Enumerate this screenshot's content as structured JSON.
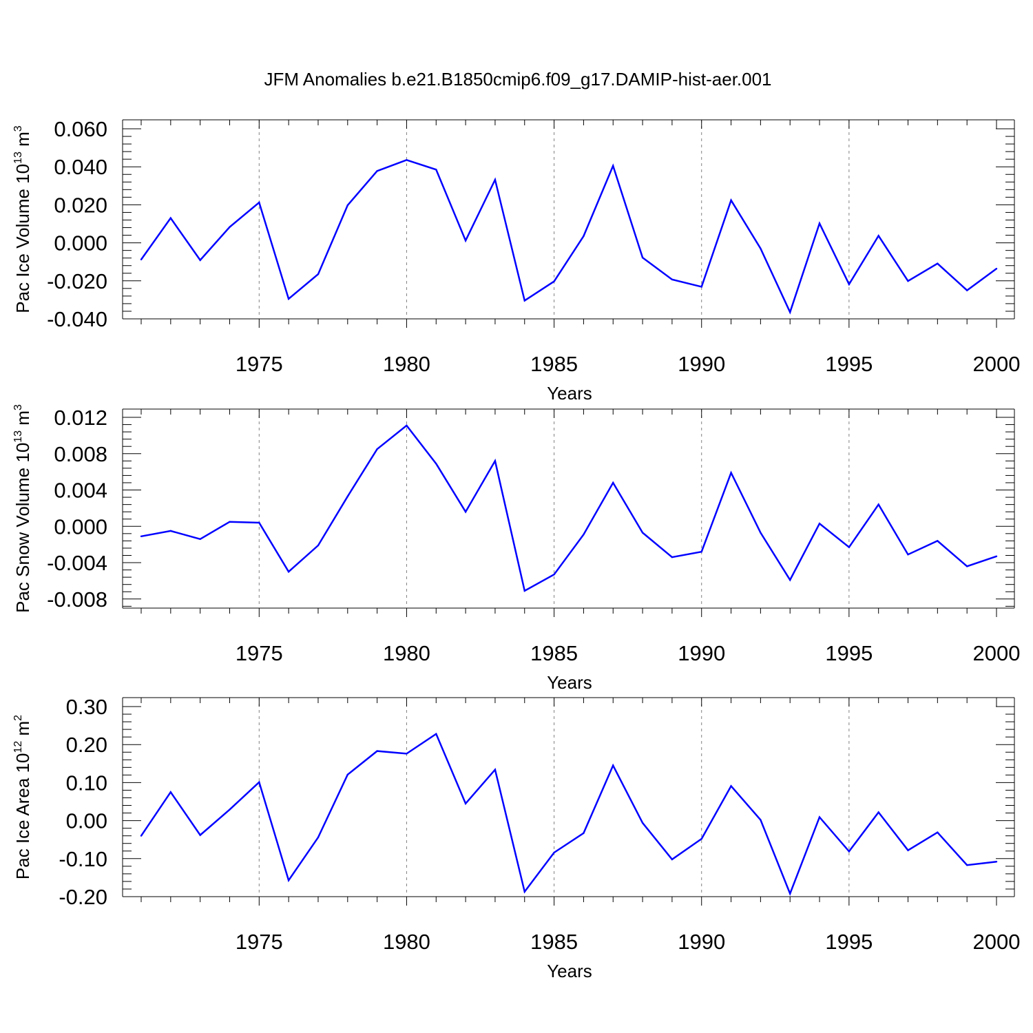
{
  "title": "JFM Anomalies b.e21.B1850cmip6.f09_g17.DAMIP-hist-aer.001",
  "colors": {
    "line": "#0000ff",
    "axis": "#000000",
    "grid": "#808080"
  },
  "chart_data": [
    {
      "type": "line",
      "ylabel_main": "Pac Ice Volume 10",
      "ylabel_sup1": "13",
      "ylabel_unit": " m",
      "ylabel_sup2": "3",
      "xlabel": "Years",
      "xlim": [
        1971,
        2000
      ],
      "ylim": [
        -0.04,
        0.06
      ],
      "y_ticks": [
        -0.04,
        -0.02,
        0.0,
        0.02,
        0.04,
        0.06
      ],
      "y_tick_labels": [
        "-0.040",
        "-0.020",
        "0.000",
        "0.020",
        "0.040",
        "0.060"
      ],
      "x_ticks": [
        1975,
        1980,
        1985,
        1990,
        1995,
        2000
      ],
      "x_tick_labels": [
        "1975",
        "1980",
        "1985",
        "1990",
        "1995",
        "2000"
      ],
      "x": [
        1971,
        1972,
        1973,
        1974,
        1975,
        1976,
        1977,
        1978,
        1979,
        1980,
        1981,
        1982,
        1983,
        1984,
        1985,
        1986,
        1987,
        1988,
        1989,
        1990,
        1991,
        1992,
        1993,
        1994,
        1995,
        1996,
        1997,
        1998,
        1999,
        2000
      ],
      "values": [
        -0.0088,
        0.013,
        -0.0091,
        0.0083,
        0.0212,
        -0.0295,
        -0.0165,
        0.0198,
        0.0378,
        0.0436,
        0.0385,
        0.0012,
        0.0332,
        -0.0304,
        -0.0203,
        0.0035,
        0.0405,
        -0.0078,
        -0.0193,
        -0.0231,
        0.0224,
        -0.003,
        -0.0365,
        0.0102,
        -0.0218,
        0.0037,
        -0.0201,
        -0.0109,
        -0.025,
        -0.0136
      ]
    },
    {
      "type": "line",
      "ylabel_main": "Pac Snow Volume 10",
      "ylabel_sup1": "13",
      "ylabel_unit": " m",
      "ylabel_sup2": "3",
      "xlabel": "Years",
      "xlim": [
        1971,
        2000
      ],
      "ylim": [
        -0.009,
        0.012
      ],
      "y_ticks": [
        -0.008,
        -0.004,
        0.0,
        0.004,
        0.008,
        0.012
      ],
      "y_tick_labels": [
        "-0.008",
        "-0.004",
        "0.000",
        "0.004",
        "0.008",
        "0.012"
      ],
      "x_ticks": [
        1975,
        1980,
        1985,
        1990,
        1995,
        2000
      ],
      "x_tick_labels": [
        "1975",
        "1980",
        "1985",
        "1990",
        "1995",
        "2000"
      ],
      "x": [
        1971,
        1972,
        1973,
        1974,
        1975,
        1976,
        1977,
        1978,
        1979,
        1980,
        1981,
        1982,
        1983,
        1984,
        1985,
        1986,
        1987,
        1988,
        1989,
        1990,
        1991,
        1992,
        1993,
        1994,
        1995,
        1996,
        1997,
        1998,
        1999,
        2000
      ],
      "values": [
        -0.0011,
        -0.0005,
        -0.0014,
        0.0005,
        0.0004,
        -0.005,
        -0.0021,
        0.0033,
        0.0085,
        0.0111,
        0.0069,
        0.0016,
        0.0072,
        -0.0071,
        -0.0053,
        -0.0009,
        0.0048,
        -0.0007,
        -0.0034,
        -0.0028,
        0.0059,
        -0.0007,
        -0.0059,
        0.0003,
        -0.0023,
        0.0024,
        -0.0031,
        -0.0016,
        -0.0044,
        -0.0033
      ]
    },
    {
      "type": "line",
      "ylabel_main": "Pac Ice Area 10",
      "ylabel_sup1": "12",
      "ylabel_unit": " m",
      "ylabel_sup2": "2",
      "xlabel": "Years",
      "xlim": [
        1971,
        2000
      ],
      "ylim": [
        -0.2,
        0.3
      ],
      "y_ticks": [
        -0.2,
        -0.1,
        0.0,
        0.1,
        0.2,
        0.3
      ],
      "y_tick_labels": [
        "-0.20",
        "-0.10",
        "0.00",
        "0.10",
        "0.20",
        "0.30"
      ],
      "x_ticks": [
        1975,
        1980,
        1985,
        1990,
        1995,
        2000
      ],
      "x_tick_labels": [
        "1975",
        "1980",
        "1985",
        "1990",
        "1995",
        "2000"
      ],
      "x": [
        1971,
        1972,
        1973,
        1974,
        1975,
        1976,
        1977,
        1978,
        1979,
        1980,
        1981,
        1982,
        1983,
        1984,
        1985,
        1986,
        1987,
        1988,
        1989,
        1990,
        1991,
        1992,
        1993,
        1994,
        1995,
        1996,
        1997,
        1998,
        1999,
        2000
      ],
      "values": [
        -0.04,
        0.075,
        -0.038,
        0.029,
        0.101,
        -0.157,
        -0.044,
        0.121,
        0.183,
        0.176,
        0.228,
        0.045,
        0.134,
        -0.187,
        -0.084,
        -0.033,
        0.145,
        -0.006,
        -0.102,
        -0.048,
        0.091,
        0.002,
        -0.192,
        0.009,
        -0.081,
        0.022,
        -0.078,
        -0.031,
        -0.117,
        -0.108
      ]
    }
  ]
}
